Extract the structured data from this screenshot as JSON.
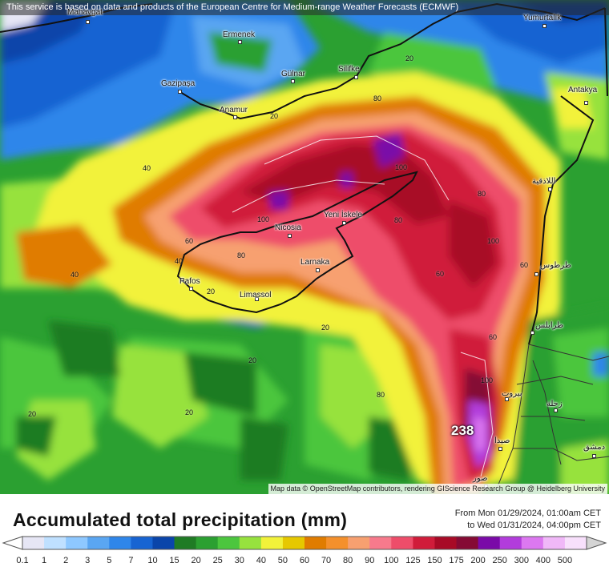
{
  "header": {
    "notice": "This service is based on data and products of the European Centre for Medium-range Weather Forecasts (ECMWF)"
  },
  "map": {
    "attribution": "Map data © OpenStreetMap contributors, rendering GIScience Research Group @ Heidelberg University",
    "max_value": "238",
    "cities": [
      "Manavgat",
      "Ermenek",
      "Gülnar",
      "Silifke",
      "Gazipaşa",
      "Anamur",
      "Yumurtalık",
      "Antakya",
      "اللاذقية",
      "طرطوس",
      "طرابلس",
      "بيروت",
      "صيدا",
      "صور",
      "زحلة",
      "دمشق",
      "Nicosia",
      "Yeni İskele",
      "Larnaka",
      "Pafos",
      "Limassol"
    ],
    "contour_labels": [
      "20",
      "20",
      "20",
      "20",
      "20",
      "20",
      "20",
      "40",
      "40",
      "40",
      "60",
      "60",
      "60",
      "60",
      "80",
      "80",
      "80",
      "80",
      "80",
      "100",
      "100",
      "100",
      "100"
    ]
  },
  "title": "Accumulated total precipitation (mm)",
  "period": {
    "from": "From Mon 01/29/2024, 01:00am CET",
    "to": "to Wed 01/31/2024, 04:00pm CET"
  },
  "legend": {
    "labels": [
      "0.1",
      "1",
      "2",
      "3",
      "5",
      "7",
      "10",
      "15",
      "20",
      "25",
      "30",
      "40",
      "50",
      "60",
      "70",
      "80",
      "90",
      "100",
      "125",
      "150",
      "175",
      "200",
      "250",
      "300",
      "400",
      "500"
    ],
    "colors": [
      "#e6e6f5",
      "#bfe0ff",
      "#8ec8ff",
      "#5aa6f2",
      "#2f86ea",
      "#1764d2",
      "#0a45aa",
      "#1f7b24",
      "#2ba031",
      "#4cc63e",
      "#97e23e",
      "#f2f23a",
      "#e6c800",
      "#e07c00",
      "#f4902c",
      "#f7a070",
      "#f77a8c",
      "#ee4d6a",
      "#d01c3a",
      "#a80a26",
      "#850a34",
      "#7a0aa8",
      "#b23cdc",
      "#dc78f0",
      "#f0b8f8",
      "#f8e0fc",
      "#d4d4d4"
    ]
  }
}
